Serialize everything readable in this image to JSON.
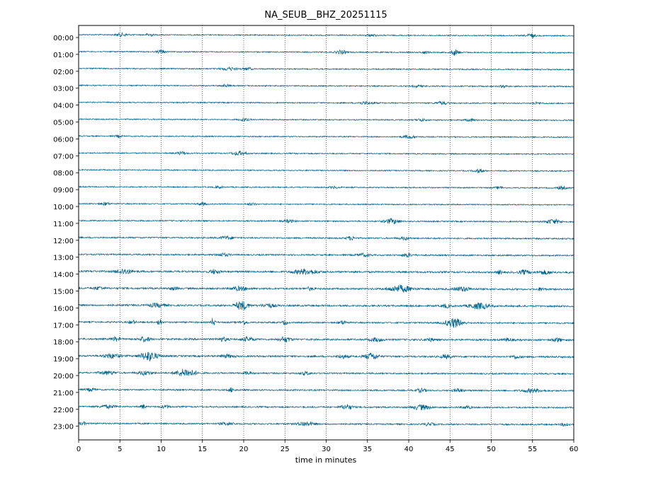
{
  "chart_data": {
    "type": "line",
    "title": "NA_SEUB__BHZ_20251115",
    "xlabel": "time in minutes",
    "ylabel": "",
    "xlim": [
      0,
      60
    ],
    "x_ticks": [
      0,
      5,
      10,
      15,
      20,
      25,
      30,
      35,
      40,
      45,
      50,
      55,
      60
    ],
    "x_tick_labels": [
      "0",
      "5",
      "10",
      "15",
      "20",
      "25",
      "30",
      "35",
      "40",
      "45",
      "50",
      "55",
      "60"
    ],
    "hour_labels": [
      "00:00",
      "01:00",
      "02:00",
      "03:00",
      "04:00",
      "05:00",
      "06:00",
      "07:00",
      "08:00",
      "09:00",
      "10:00",
      "11:00",
      "12:00",
      "13:00",
      "14:00",
      "15:00",
      "16:00",
      "17:00",
      "18:00",
      "19:00",
      "20:00",
      "21:00",
      "22:00",
      "23:00"
    ],
    "vertical_grid": "dotted",
    "trace_color": "#00638a",
    "series": [
      {
        "hour": "00:00",
        "noise": 0.8,
        "bursts": [
          {
            "t": 5.2,
            "a": 2.0,
            "w": 0.8
          },
          {
            "t": 8.6,
            "a": 2.5,
            "w": 0.4
          },
          {
            "t": 35.5,
            "a": 1.5,
            "w": 0.6
          },
          {
            "t": 54.8,
            "a": 3.0,
            "w": 0.5
          }
        ]
      },
      {
        "hour": "01:00",
        "noise": 0.8,
        "bursts": [
          {
            "t": 10.0,
            "a": 2.5,
            "w": 0.5
          },
          {
            "t": 31.8,
            "a": 2.5,
            "w": 0.7
          },
          {
            "t": 42.0,
            "a": 1.8,
            "w": 0.5
          },
          {
            "t": 45.6,
            "a": 4.0,
            "w": 0.5
          }
        ]
      },
      {
        "hour": "02:00",
        "noise": 0.8,
        "bursts": [
          {
            "t": 18.2,
            "a": 2.0,
            "w": 1.0
          },
          {
            "t": 20.5,
            "a": 1.8,
            "w": 0.5
          }
        ]
      },
      {
        "hour": "03:00",
        "noise": 0.8,
        "bursts": [
          {
            "t": 17.8,
            "a": 1.5,
            "w": 0.5
          },
          {
            "t": 41.0,
            "a": 1.5,
            "w": 0.6
          },
          {
            "t": 51.5,
            "a": 1.5,
            "w": 0.5
          }
        ]
      },
      {
        "hour": "04:00",
        "noise": 0.8,
        "bursts": [
          {
            "t": 34.8,
            "a": 1.8,
            "w": 1.0
          },
          {
            "t": 44.0,
            "a": 2.0,
            "w": 0.8
          },
          {
            "t": 55.5,
            "a": 1.5,
            "w": 0.6
          }
        ]
      },
      {
        "hour": "05:00",
        "noise": 0.8,
        "bursts": [
          {
            "t": 20.0,
            "a": 2.0,
            "w": 0.6
          },
          {
            "t": 41.5,
            "a": 1.8,
            "w": 0.6
          },
          {
            "t": 47.5,
            "a": 1.8,
            "w": 0.6
          }
        ]
      },
      {
        "hour": "06:00",
        "noise": 0.8,
        "bursts": [
          {
            "t": 4.8,
            "a": 1.5,
            "w": 0.4
          },
          {
            "t": 40.0,
            "a": 2.0,
            "w": 0.8
          }
        ]
      },
      {
        "hour": "07:00",
        "noise": 0.8,
        "bursts": [
          {
            "t": 12.5,
            "a": 2.0,
            "w": 0.6
          },
          {
            "t": 19.5,
            "a": 2.8,
            "w": 0.9
          }
        ]
      },
      {
        "hour": "08:00",
        "noise": 0.8,
        "bursts": [
          {
            "t": 48.5,
            "a": 2.5,
            "w": 0.6
          }
        ]
      },
      {
        "hour": "09:00",
        "noise": 0.8,
        "bursts": [
          {
            "t": 17.0,
            "a": 1.5,
            "w": 0.5
          },
          {
            "t": 31.0,
            "a": 1.5,
            "w": 0.6
          },
          {
            "t": 51.0,
            "a": 1.5,
            "w": 0.5
          },
          {
            "t": 58.5,
            "a": 2.0,
            "w": 0.6
          }
        ]
      },
      {
        "hour": "10:00",
        "noise": 0.8,
        "bursts": [
          {
            "t": 3.2,
            "a": 2.0,
            "w": 0.6
          },
          {
            "t": 15.0,
            "a": 1.8,
            "w": 0.5
          },
          {
            "t": 21.0,
            "a": 1.5,
            "w": 0.5
          }
        ]
      },
      {
        "hour": "11:00",
        "noise": 0.9,
        "bursts": [
          {
            "t": 25.5,
            "a": 2.0,
            "w": 0.6
          },
          {
            "t": 38.0,
            "a": 3.5,
            "w": 0.9
          },
          {
            "t": 57.5,
            "a": 3.2,
            "w": 0.9
          }
        ]
      },
      {
        "hour": "12:00",
        "noise": 1.0,
        "bursts": [
          {
            "t": 18.0,
            "a": 2.0,
            "w": 0.8
          },
          {
            "t": 33.0,
            "a": 2.5,
            "w": 0.5
          },
          {
            "t": 39.5,
            "a": 2.0,
            "w": 0.6
          }
        ]
      },
      {
        "hour": "13:00",
        "noise": 1.0,
        "bursts": [
          {
            "t": 17.5,
            "a": 2.0,
            "w": 0.8
          },
          {
            "t": 34.5,
            "a": 2.0,
            "w": 0.8
          },
          {
            "t": 39.8,
            "a": 2.5,
            "w": 0.6
          }
        ]
      },
      {
        "hour": "14:00",
        "noise": 1.2,
        "bursts": [
          {
            "t": 5.5,
            "a": 3.5,
            "w": 1.0
          },
          {
            "t": 16.5,
            "a": 3.0,
            "w": 0.6
          },
          {
            "t": 27.5,
            "a": 3.5,
            "w": 1.5
          },
          {
            "t": 51.0,
            "a": 2.5,
            "w": 0.3
          },
          {
            "t": 54.0,
            "a": 3.0,
            "w": 0.6
          },
          {
            "t": 56.5,
            "a": 2.5,
            "w": 0.8
          }
        ]
      },
      {
        "hour": "15:00",
        "noise": 1.2,
        "bursts": [
          {
            "t": 2.5,
            "a": 2.0,
            "w": 0.6
          },
          {
            "t": 11.5,
            "a": 2.0,
            "w": 0.5
          },
          {
            "t": 19.5,
            "a": 2.5,
            "w": 1.0
          },
          {
            "t": 28.0,
            "a": 2.0,
            "w": 0.5
          },
          {
            "t": 39.0,
            "a": 4.5,
            "w": 1.4
          },
          {
            "t": 46.5,
            "a": 3.0,
            "w": 1.0
          },
          {
            "t": 56.0,
            "a": 2.0,
            "w": 0.4
          }
        ]
      },
      {
        "hour": "16:00",
        "noise": 1.2,
        "bursts": [
          {
            "t": 9.5,
            "a": 2.5,
            "w": 1.0
          },
          {
            "t": 19.8,
            "a": 6.0,
            "w": 0.8
          },
          {
            "t": 23.0,
            "a": 2.5,
            "w": 0.8
          },
          {
            "t": 44.5,
            "a": 2.5,
            "w": 0.5
          },
          {
            "t": 48.5,
            "a": 4.0,
            "w": 1.2
          }
        ]
      },
      {
        "hour": "17:00",
        "noise": 1.0,
        "bursts": [
          {
            "t": 6.5,
            "a": 2.5,
            "w": 0.4
          },
          {
            "t": 9.8,
            "a": 7.0,
            "w": 0.2
          },
          {
            "t": 16.3,
            "a": 7.0,
            "w": 0.2
          },
          {
            "t": 20.0,
            "a": 2.5,
            "w": 0.5
          },
          {
            "t": 25.0,
            "a": 3.0,
            "w": 0.3
          },
          {
            "t": 32.0,
            "a": 2.5,
            "w": 0.5
          },
          {
            "t": 45.5,
            "a": 6.5,
            "w": 1.0
          }
        ]
      },
      {
        "hour": "18:00",
        "noise": 1.2,
        "bursts": [
          {
            "t": 4.5,
            "a": 2.5,
            "w": 0.5
          },
          {
            "t": 8.0,
            "a": 3.5,
            "w": 0.6
          },
          {
            "t": 17.5,
            "a": 2.5,
            "w": 0.6
          },
          {
            "t": 20.5,
            "a": 2.5,
            "w": 0.8
          },
          {
            "t": 25.0,
            "a": 3.5,
            "w": 0.7
          },
          {
            "t": 36.0,
            "a": 2.5,
            "w": 0.8
          },
          {
            "t": 42.5,
            "a": 2.0,
            "w": 0.6
          },
          {
            "t": 52.0,
            "a": 2.0,
            "w": 0.6
          },
          {
            "t": 58.0,
            "a": 2.5,
            "w": 0.6
          }
        ]
      },
      {
        "hour": "19:00",
        "noise": 1.2,
        "bursts": [
          {
            "t": 4.0,
            "a": 3.0,
            "w": 1.0
          },
          {
            "t": 8.5,
            "a": 6.5,
            "w": 1.0
          },
          {
            "t": 18.0,
            "a": 2.0,
            "w": 0.8
          },
          {
            "t": 32.0,
            "a": 2.5,
            "w": 0.6
          },
          {
            "t": 35.5,
            "a": 4.5,
            "w": 0.8
          },
          {
            "t": 44.5,
            "a": 2.5,
            "w": 0.6
          },
          {
            "t": 53.0,
            "a": 2.0,
            "w": 0.6
          }
        ]
      },
      {
        "hour": "20:00",
        "noise": 1.0,
        "bursts": [
          {
            "t": 3.5,
            "a": 2.5,
            "w": 1.0
          },
          {
            "t": 8.0,
            "a": 3.0,
            "w": 0.8
          },
          {
            "t": 13.0,
            "a": 5.5,
            "w": 1.2
          },
          {
            "t": 20.5,
            "a": 2.0,
            "w": 0.6
          },
          {
            "t": 27.5,
            "a": 2.0,
            "w": 0.6
          }
        ]
      },
      {
        "hour": "21:00",
        "noise": 1.0,
        "bursts": [
          {
            "t": 1.5,
            "a": 2.0,
            "w": 0.6
          },
          {
            "t": 18.5,
            "a": 3.0,
            "w": 0.3
          },
          {
            "t": 41.5,
            "a": 2.5,
            "w": 0.6
          },
          {
            "t": 46.0,
            "a": 2.5,
            "w": 0.6
          },
          {
            "t": 55.0,
            "a": 2.5,
            "w": 1.2
          }
        ]
      },
      {
        "hour": "22:00",
        "noise": 1.0,
        "bursts": [
          {
            "t": 3.5,
            "a": 2.0,
            "w": 1.0
          },
          {
            "t": 7.8,
            "a": 3.0,
            "w": 0.3
          },
          {
            "t": 10.5,
            "a": 2.0,
            "w": 0.6
          },
          {
            "t": 32.5,
            "a": 3.5,
            "w": 0.7
          },
          {
            "t": 41.5,
            "a": 3.5,
            "w": 1.0
          },
          {
            "t": 47.0,
            "a": 2.0,
            "w": 0.6
          }
        ]
      },
      {
        "hour": "23:00",
        "noise": 1.0,
        "bursts": [
          {
            "t": 0.5,
            "a": 2.0,
            "w": 0.4
          },
          {
            "t": 18.0,
            "a": 2.0,
            "w": 0.8
          },
          {
            "t": 27.5,
            "a": 3.0,
            "w": 1.0
          },
          {
            "t": 42.5,
            "a": 2.0,
            "w": 0.6
          },
          {
            "t": 59.0,
            "a": 2.5,
            "w": 0.5
          }
        ]
      }
    ]
  }
}
